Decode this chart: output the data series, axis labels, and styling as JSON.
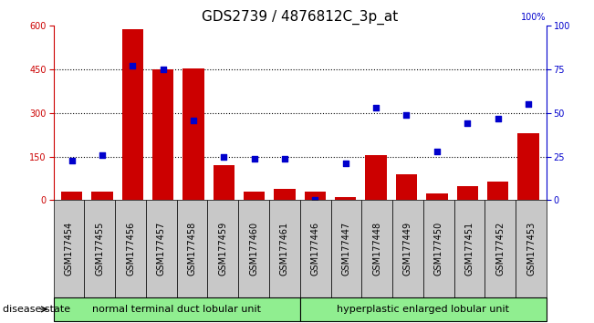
{
  "title": "GDS2739 / 4876812C_3p_at",
  "categories": [
    "GSM177454",
    "GSM177455",
    "GSM177456",
    "GSM177457",
    "GSM177458",
    "GSM177459",
    "GSM177460",
    "GSM177461",
    "GSM177446",
    "GSM177447",
    "GSM177448",
    "GSM177449",
    "GSM177450",
    "GSM177451",
    "GSM177452",
    "GSM177453"
  ],
  "counts": [
    30,
    30,
    590,
    450,
    455,
    120,
    30,
    40,
    30,
    10,
    155,
    90,
    25,
    50,
    65,
    230
  ],
  "percentiles": [
    23,
    26,
    77,
    75,
    46,
    25,
    24,
    24,
    0,
    21,
    53,
    49,
    28,
    44,
    47,
    55
  ],
  "group1_label": "normal terminal duct lobular unit",
  "group1_count": 8,
  "group2_label": "hyperplastic enlarged lobular unit",
  "group2_count": 8,
  "disease_state_label": "disease state",
  "ylim_left": [
    0,
    600
  ],
  "ylim_right": [
    0,
    100
  ],
  "yticks_left": [
    0,
    150,
    300,
    450,
    600
  ],
  "yticks_right": [
    0,
    25,
    50,
    75,
    100
  ],
  "bar_color": "#cc0000",
  "dot_color": "#0000cc",
  "group_color": "#90ee90",
  "label_bg_color": "#c8c8c8",
  "bg_color": "#ffffff",
  "title_fontsize": 11,
  "tick_fontsize": 7,
  "label_fontsize": 8,
  "hline_color": "#000000",
  "hline_style": ":",
  "hline_vals": [
    150,
    300,
    450
  ]
}
